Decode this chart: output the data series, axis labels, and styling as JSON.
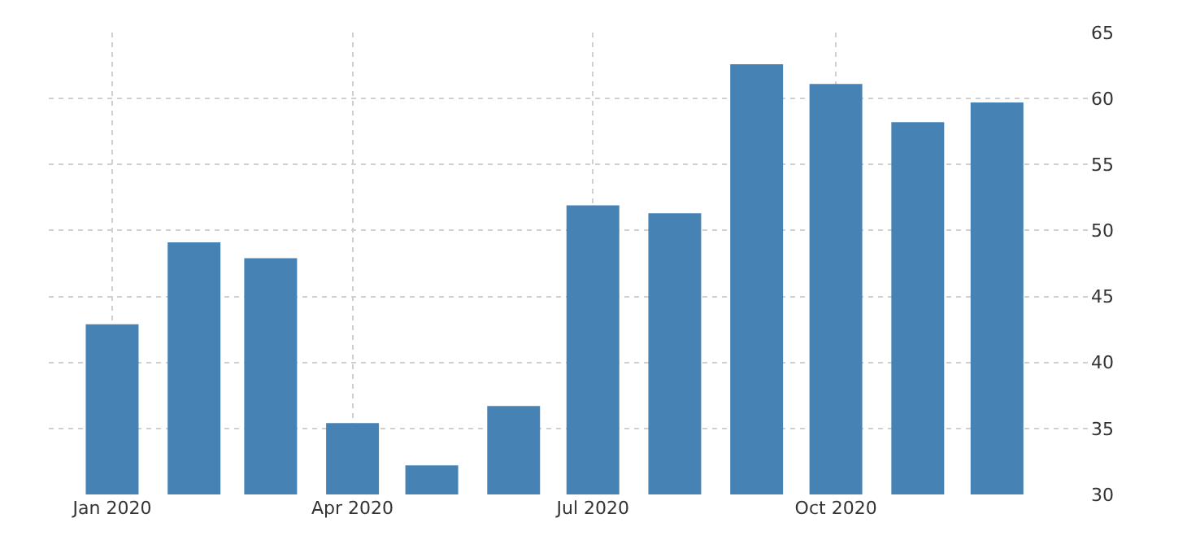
{
  "chart_data": {
    "type": "bar",
    "x": [
      "2020-01",
      "2020-02",
      "2020-03",
      "2020-04",
      "2020-05",
      "2020-06",
      "2020-07",
      "2020-08",
      "2020-09",
      "2020-10",
      "2020-11",
      "2020-12"
    ],
    "values": [
      42.9,
      49.1,
      47.9,
      35.4,
      32.2,
      36.7,
      51.9,
      51.3,
      62.6,
      61.1,
      58.2,
      59.7
    ],
    "color": "#4682b4",
    "xlim": [
      "2019-12-08",
      "2021-01-05"
    ],
    "xticks": [
      {
        "value": "2020-01",
        "label": "Jan 2020"
      },
      {
        "value": "2020-04",
        "label": "Apr 2020"
      },
      {
        "value": "2020-07",
        "label": "Jul 2020"
      },
      {
        "value": "2020-10",
        "label": "Oct 2020"
      }
    ],
    "ylim": [
      30,
      65
    ],
    "yticks": [
      30,
      35,
      40,
      45,
      50,
      55,
      60,
      65
    ],
    "grid": true
  }
}
